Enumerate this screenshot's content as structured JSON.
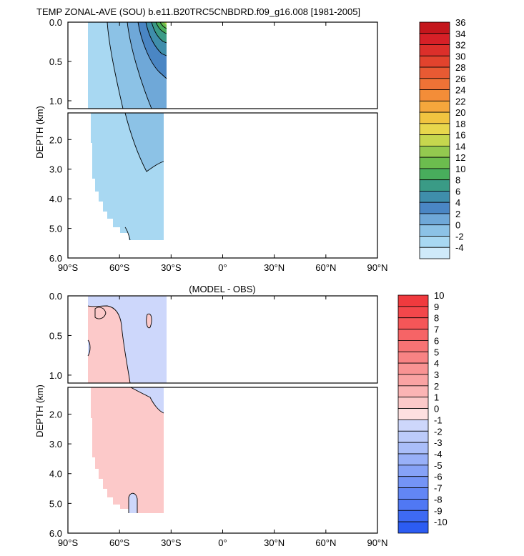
{
  "chart_data": [
    {
      "type": "filled_contour",
      "title": "TEMP ZONAL-AVE (SOU) b.e11.B20TRC5CNBDRD.f09_g16.008 [1981-2005]",
      "ylabel": "DEPTH (km)",
      "xlim": [
        -90,
        90
      ],
      "ylim_upper_km": [
        0,
        1.1
      ],
      "ylim_lower_km": [
        1.1,
        6.0
      ],
      "x_ticks": [
        -90,
        -60,
        -30,
        0,
        30,
        60,
        90
      ],
      "x_tick_labels": [
        "90°S",
        "60°S",
        "30°S",
        "0°",
        "30°N",
        "60°N",
        "90°N"
      ],
      "y_ticks_upper": [
        0.0,
        0.5,
        1.0
      ],
      "y_tick_labels_upper": [
        "0.0",
        "0.5",
        "1.0"
      ],
      "y_ticks_lower": [
        2.0,
        3.0,
        4.0,
        5.0,
        6.0
      ],
      "y_tick_labels_lower": [
        "2.0",
        "3.0",
        "4.0",
        "5.0",
        "6.0"
      ],
      "colorbar_levels": [
        36,
        34,
        32,
        30,
        28,
        26,
        24,
        22,
        20,
        18,
        16,
        14,
        12,
        10,
        8,
        6,
        4,
        2,
        0,
        -2,
        -4
      ],
      "colorbar_labels": [
        "36",
        "34",
        "32",
        "30",
        "28",
        "26",
        "24",
        "22",
        "20",
        "18",
        "16",
        "14",
        "12",
        "10",
        "8",
        "6",
        "4",
        "2",
        "0",
        "-2",
        "-4"
      ],
      "colorbar_colors": [
        "#c4161c",
        "#d62027",
        "#dc2f2a",
        "#e2432d",
        "#e85a33",
        "#ee7236",
        "#f38d38",
        "#f5a73c",
        "#f1c440",
        "#e8d74c",
        "#c6d74e",
        "#93c94f",
        "#6cbd4e",
        "#48ad5c",
        "#3a9b86",
        "#3f8eab",
        "#4a86c4",
        "#6fa8d8",
        "#8cc2e6",
        "#a8d8f2",
        "#cfeafa"
      ],
      "regions": [
        {
          "level": 0,
          "x_range_deg": [
            -78,
            -33
          ],
          "depth_range_km": [
            0,
            5.35
          ]
        },
        {
          "level": 2,
          "x_range_deg": [
            -62,
            -33
          ],
          "depth_range_km": [
            0,
            3.1
          ]
        },
        {
          "level": 4,
          "x_range_deg": [
            -44,
            -33
          ],
          "depth_range_km": [
            0,
            0.9
          ]
        },
        {
          "level": 6,
          "x_range_deg": [
            -40,
            -33
          ],
          "depth_range_km": [
            0,
            0.6
          ]
        },
        {
          "level": 8,
          "x_range_deg": [
            -38,
            -33
          ],
          "depth_range_km": [
            0,
            0.35
          ]
        },
        {
          "level": 12,
          "x_range_deg": [
            -36,
            -33
          ],
          "depth_range_km": [
            0,
            0.15
          ]
        }
      ]
    },
    {
      "type": "filled_contour",
      "title": "(MODEL - OBS)",
      "ylabel": "DEPTH (km)",
      "xlim": [
        -90,
        90
      ],
      "ylim_upper_km": [
        0,
        1.1
      ],
      "ylim_lower_km": [
        1.1,
        6.0
      ],
      "x_ticks": [
        -90,
        -60,
        -30,
        0,
        30,
        60,
        90
      ],
      "x_tick_labels": [
        "90°S",
        "60°S",
        "30°S",
        "0°",
        "30°N",
        "60°N",
        "90°N"
      ],
      "y_ticks_upper": [
        0.0,
        0.5,
        1.0
      ],
      "y_tick_labels_upper": [
        "0.0",
        "0.5",
        "1.0"
      ],
      "y_ticks_lower": [
        2.0,
        3.0,
        4.0,
        5.0,
        6.0
      ],
      "y_tick_labels_lower": [
        "2.0",
        "3.0",
        "4.0",
        "5.0",
        "6.0"
      ],
      "colorbar_levels": [
        10,
        9,
        8,
        7,
        6,
        5,
        4,
        3,
        2,
        1,
        0,
        -1,
        -2,
        -3,
        -4,
        -5,
        -6,
        -7,
        -8,
        -9,
        -10
      ],
      "colorbar_labels": [
        "10",
        "9",
        "8",
        "7",
        "6",
        "5",
        "4",
        "3",
        "2",
        "1",
        "0",
        "-1",
        "-2",
        "-3",
        "-4",
        "-5",
        "-6",
        "-7",
        "-8",
        "-9",
        "-10"
      ],
      "colorbar_colors": [
        "#f03a3e",
        "#f3474b",
        "#f55658",
        "#f66466",
        "#f77374",
        "#f88384",
        "#f99393",
        "#faa3a3",
        "#fbb4b4",
        "#fcc9c9",
        "#fde0e0",
        "#cdd7fb",
        "#bccbfa",
        "#aabef9",
        "#98b0f8",
        "#86a2f7",
        "#7494f6",
        "#6286f5",
        "#5078f4",
        "#3e6af3",
        "#2c5cf2"
      ],
      "regions": [
        {
          "level": 1,
          "x_range_deg": [
            -78,
            -33
          ],
          "depth_range_km": [
            0,
            5.35
          ],
          "note": "warm bias (0 to 2)"
        },
        {
          "level": -1,
          "x_range_deg": [
            -53,
            -33
          ],
          "depth_range_km": [
            0,
            2.0
          ],
          "note": "cool bias (-2 to 0)"
        }
      ]
    }
  ]
}
